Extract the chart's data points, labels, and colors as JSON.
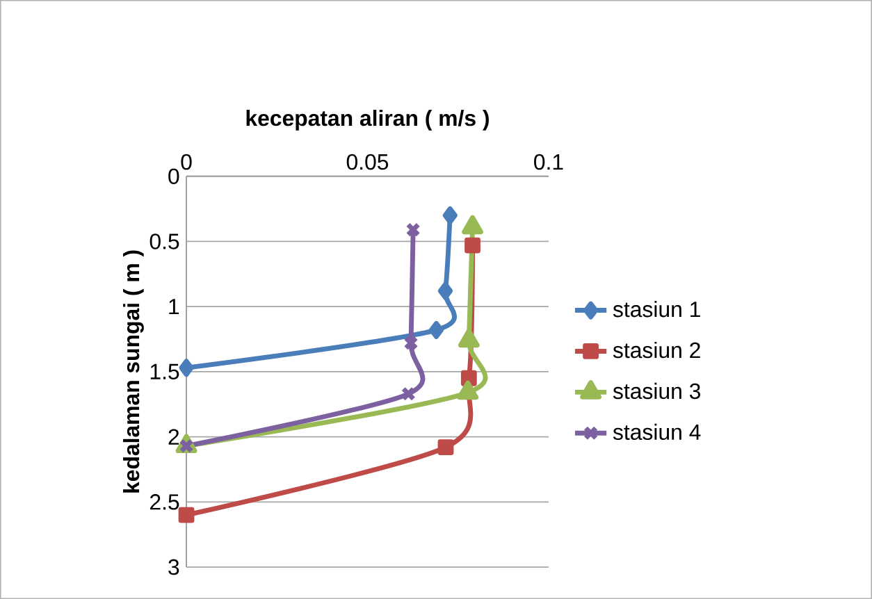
{
  "chart_data": {
    "type": "line",
    "xlabel": "kecepatan aliran ( m/s )",
    "ylabel": "kedalaman sungai ( m )",
    "xlim": [
      0,
      0.1
    ],
    "xticks": [
      0,
      0.05,
      0.1
    ],
    "ylim": [
      3,
      0
    ],
    "yticks": [
      0,
      0.5,
      1,
      1.5,
      2,
      2.5,
      3
    ],
    "grid": "y",
    "legend": "right",
    "line_style": "solid",
    "series": [
      {
        "name": "stasiun 1",
        "color": "#4a7ebb",
        "marker": "diamond",
        "x": [
          0.0728,
          0.0715,
          0.069,
          0
        ],
        "values": [
          0.3,
          0.88,
          1.18,
          1.47
        ]
      },
      {
        "name": "stasiun 2",
        "color": "#be4b48",
        "marker": "square",
        "x": [
          0.079,
          0.078,
          0.0716,
          0
        ],
        "values": [
          0.53,
          1.55,
          2.08,
          2.6
        ]
      },
      {
        "name": "stasiun 3",
        "color": "#98b954",
        "marker": "triangle",
        "x": [
          0.079,
          0.078,
          0.0777,
          0
        ],
        "values": [
          0.39,
          1.26,
          1.66,
          2.07
        ]
      },
      {
        "name": "stasiun 4",
        "color": "#7d60a0",
        "marker": "cross",
        "x": [
          0.0626,
          0.062,
          0.0613,
          0
        ],
        "values": [
          0.41,
          1.28,
          1.67,
          2.07
        ]
      }
    ]
  }
}
